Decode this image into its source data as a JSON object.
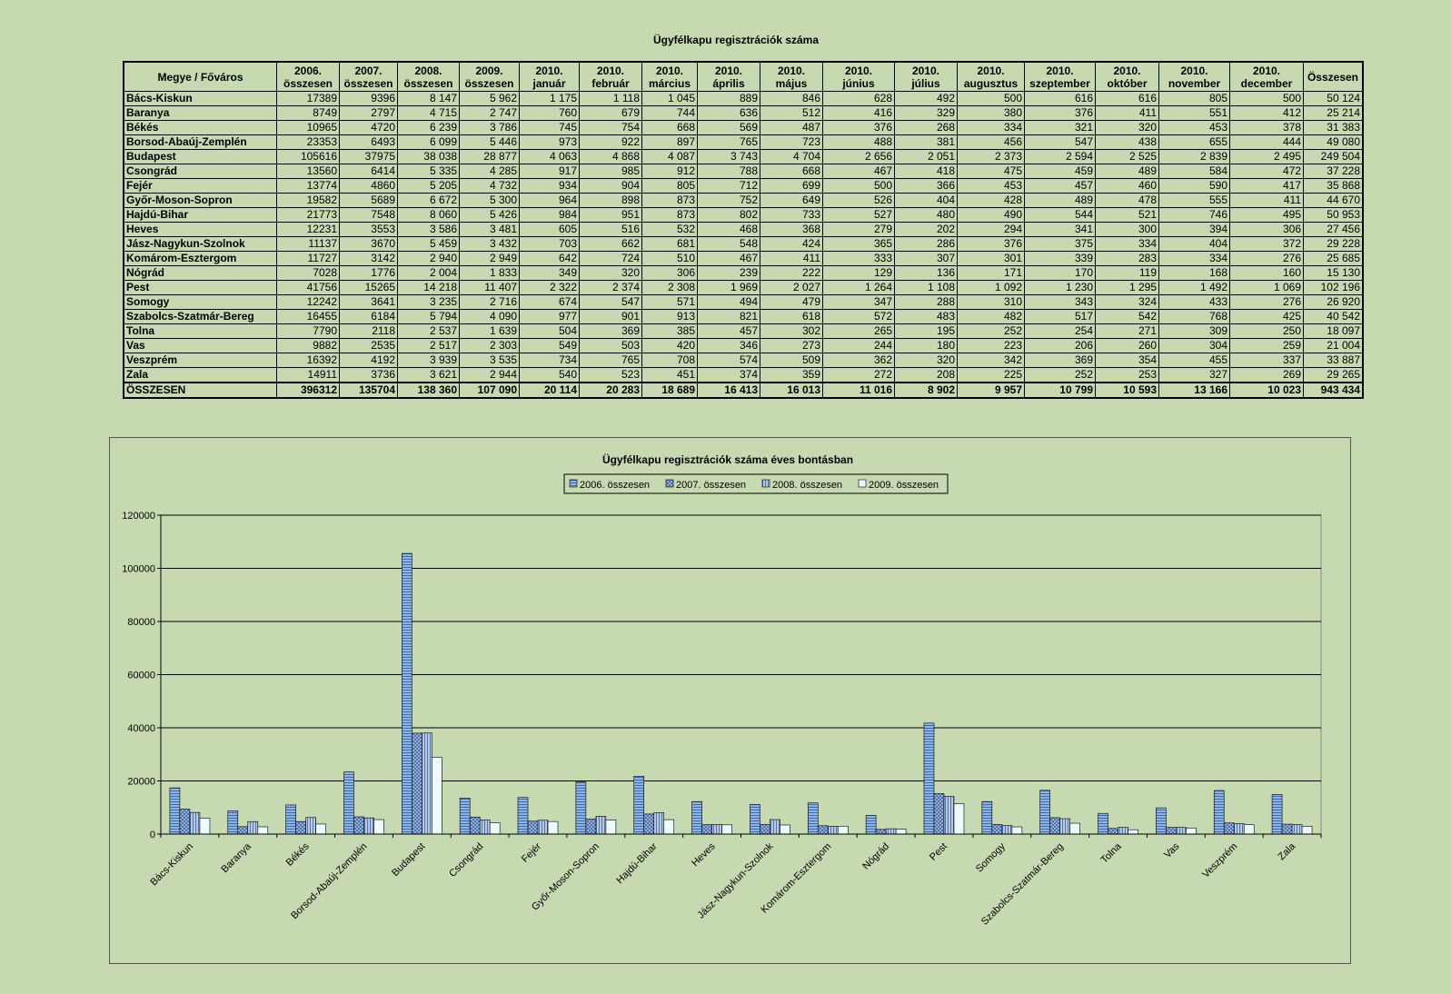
{
  "page_title": "Ügyfélkapu regisztrációk száma",
  "table": {
    "headers": [
      "Megye / Főváros",
      "2006. összesen",
      "2007. összesen",
      "2008. összesen",
      "2009. összesen",
      "2010. január",
      "2010. február",
      "2010. március",
      "2010. április",
      "2010. május",
      "2010. június",
      "2010. július",
      "2010. augusztus",
      "2010. szeptember",
      "2010. október",
      "2010. november",
      "2010. december",
      "Összesen"
    ],
    "rows": [
      [
        "Bács-Kiskun",
        "17389",
        "9396",
        "8 147",
        "5 962",
        "1 175",
        "1 118",
        "1 045",
        "889",
        "846",
        "628",
        "492",
        "500",
        "616",
        "616",
        "805",
        "500",
        "50 124"
      ],
      [
        "Baranya",
        "8749",
        "2797",
        "4 715",
        "2 747",
        "760",
        "679",
        "744",
        "636",
        "512",
        "416",
        "329",
        "380",
        "376",
        "411",
        "551",
        "412",
        "25 214"
      ],
      [
        "Békés",
        "10965",
        "4720",
        "6 239",
        "3 786",
        "745",
        "754",
        "668",
        "569",
        "487",
        "376",
        "268",
        "334",
        "321",
        "320",
        "453",
        "378",
        "31 383"
      ],
      [
        "Borsod-Abaúj-Zemplén",
        "23353",
        "6493",
        "6 099",
        "5 446",
        "973",
        "922",
        "897",
        "765",
        "723",
        "488",
        "381",
        "456",
        "547",
        "438",
        "655",
        "444",
        "49 080"
      ],
      [
        "Budapest",
        "105616",
        "37975",
        "38 038",
        "28 877",
        "4 063",
        "4 868",
        "4 087",
        "3 743",
        "4 704",
        "2 656",
        "2 051",
        "2 373",
        "2 594",
        "2 525",
        "2 839",
        "2 495",
        "249 504"
      ],
      [
        "Csongrád",
        "13560",
        "6414",
        "5 335",
        "4 285",
        "917",
        "985",
        "912",
        "788",
        "668",
        "467",
        "418",
        "475",
        "459",
        "489",
        "584",
        "472",
        "37 228"
      ],
      [
        "Fejér",
        "13774",
        "4860",
        "5 205",
        "4 732",
        "934",
        "904",
        "805",
        "712",
        "699",
        "500",
        "366",
        "453",
        "457",
        "460",
        "590",
        "417",
        "35 868"
      ],
      [
        "Győr-Moson-Sopron",
        "19582",
        "5689",
        "6 672",
        "5 300",
        "964",
        "898",
        "873",
        "752",
        "649",
        "526",
        "404",
        "428",
        "489",
        "478",
        "555",
        "411",
        "44 670"
      ],
      [
        "Hajdú-Bihar",
        "21773",
        "7548",
        "8 060",
        "5 426",
        "984",
        "951",
        "873",
        "802",
        "733",
        "527",
        "480",
        "490",
        "544",
        "521",
        "746",
        "495",
        "50 953"
      ],
      [
        "Heves",
        "12231",
        "3553",
        "3 586",
        "3 481",
        "605",
        "516",
        "532",
        "468",
        "368",
        "279",
        "202",
        "294",
        "341",
        "300",
        "394",
        "306",
        "27 456"
      ],
      [
        "Jász-Nagykun-Szolnok",
        "11137",
        "3670",
        "5 459",
        "3 432",
        "703",
        "662",
        "681",
        "548",
        "424",
        "365",
        "286",
        "376",
        "375",
        "334",
        "404",
        "372",
        "29 228"
      ],
      [
        "Komárom-Esztergom",
        "11727",
        "3142",
        "2 940",
        "2 949",
        "642",
        "724",
        "510",
        "467",
        "411",
        "333",
        "307",
        "301",
        "339",
        "283",
        "334",
        "276",
        "25 685"
      ],
      [
        "Nógrád",
        "7028",
        "1776",
        "2 004",
        "1 833",
        "349",
        "320",
        "306",
        "239",
        "222",
        "129",
        "136",
        "171",
        "170",
        "119",
        "168",
        "160",
        "15 130"
      ],
      [
        "Pest",
        "41756",
        "15265",
        "14 218",
        "11 407",
        "2 322",
        "2 374",
        "2 308",
        "1 969",
        "2 027",
        "1 264",
        "1 108",
        "1 092",
        "1 230",
        "1 295",
        "1 492",
        "1 069",
        "102 196"
      ],
      [
        "Somogy",
        "12242",
        "3641",
        "3 235",
        "2 716",
        "674",
        "547",
        "571",
        "494",
        "479",
        "347",
        "288",
        "310",
        "343",
        "324",
        "433",
        "276",
        "26 920"
      ],
      [
        "Szabolcs-Szatmár-Bereg",
        "16455",
        "6184",
        "5 794",
        "4 090",
        "977",
        "901",
        "913",
        "821",
        "618",
        "572",
        "483",
        "482",
        "517",
        "542",
        "768",
        "425",
        "40 542"
      ],
      [
        "Tolna",
        "7790",
        "2118",
        "2 537",
        "1 639",
        "504",
        "369",
        "385",
        "457",
        "302",
        "265",
        "195",
        "252",
        "254",
        "271",
        "309",
        "250",
        "18 097"
      ],
      [
        "Vas",
        "9882",
        "2535",
        "2 517",
        "2 303",
        "549",
        "503",
        "420",
        "346",
        "273",
        "244",
        "180",
        "223",
        "206",
        "260",
        "304",
        "259",
        "21 004"
      ],
      [
        "Veszprém",
        "16392",
        "4192",
        "3 939",
        "3 535",
        "734",
        "765",
        "708",
        "574",
        "509",
        "362",
        "320",
        "342",
        "369",
        "354",
        "455",
        "337",
        "33 887"
      ],
      [
        "Zala",
        "14911",
        "3736",
        "3 621",
        "2 944",
        "540",
        "523",
        "451",
        "374",
        "359",
        "272",
        "208",
        "225",
        "252",
        "253",
        "327",
        "269",
        "29 265"
      ]
    ],
    "total_row": [
      "ÖSSZESEN",
      "396312",
      "135704",
      "138 360",
      "107 090",
      "20 114",
      "20 283",
      "18 689",
      "16 413",
      "16 013",
      "11 016",
      "8 902",
      "9 957",
      "10 799",
      "10 593",
      "13 166",
      "10 023",
      "943 434"
    ]
  },
  "chart_data": {
    "type": "bar",
    "title": "Ügyfélkapu regisztrációk száma éves bontásban",
    "legend_position": "top",
    "grid": true,
    "ylim": [
      0,
      120000
    ],
    "yticks": [
      0,
      20000,
      40000,
      60000,
      80000,
      100000,
      120000
    ],
    "categories": [
      "Bács-Kiskun",
      "Baranya",
      "Békés",
      "Borsod-Abaúj-Zemplén",
      "Budapest",
      "Csongrád",
      "Fejér",
      "Győr-Moson-Sopron",
      "Hajdú-Bihar",
      "Heves",
      "Jász-Nagykun-Szolnok",
      "Komárom-Esztergom",
      "Nógrád",
      "Pest",
      "Somogy",
      "Szabolcs-Szatmár-Bereg",
      "Tolna",
      "Vas",
      "Veszprém",
      "Zala"
    ],
    "series": [
      {
        "name": "2006. összesen",
        "color": "#7fa7d9",
        "values": [
          17389,
          8749,
          10965,
          23353,
          105616,
          13560,
          13774,
          19582,
          21773,
          12231,
          11137,
          11727,
          7028,
          41756,
          12242,
          16455,
          7790,
          9882,
          16392,
          14911
        ]
      },
      {
        "name": "2007. összesen",
        "color": "#8aa6d6",
        "values": [
          9396,
          2797,
          4720,
          6493,
          37975,
          6414,
          4860,
          5689,
          7548,
          3553,
          3670,
          3142,
          1776,
          15265,
          3641,
          6184,
          2118,
          2535,
          4192,
          3736
        ]
      },
      {
        "name": "2008. összesen",
        "color": "#9fb6d6",
        "values": [
          8147,
          4715,
          6239,
          6099,
          38038,
          5335,
          5205,
          6672,
          8060,
          3586,
          5459,
          2940,
          2004,
          14218,
          3235,
          5794,
          2537,
          2517,
          3939,
          3621
        ]
      },
      {
        "name": "2009. összesen",
        "color": "#e6f6fb",
        "values": [
          5962,
          2747,
          3786,
          5446,
          28877,
          4285,
          4732,
          5300,
          5426,
          3481,
          3432,
          2949,
          1833,
          11407,
          2716,
          4090,
          1639,
          2303,
          3535,
          2944
        ]
      }
    ]
  }
}
